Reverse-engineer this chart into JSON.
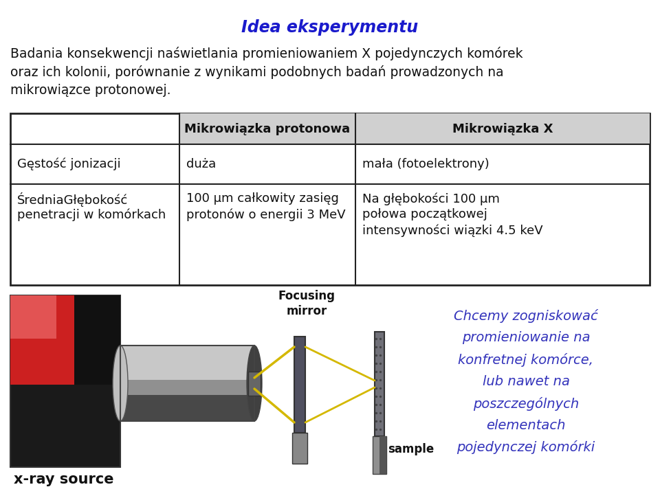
{
  "title": "Idea eksperymentu",
  "title_color": "#1a1acc",
  "body_line1": "Badania konsekwencji naświetlania promieniowaniem X pojedynczych komórek",
  "body_line2": "oraz ich kolonii, porównanie z wynikami podobnych badań prowadzonych na",
  "body_line3": "mikrowiązce protonowej.",
  "table_col0_header": "",
  "table_col1_header": "Mikrowiązka protonowa",
  "table_col2_header": "Mikrowiązka X",
  "row1_col0": "Gęstość jonizacji",
  "row1_col1": "duża",
  "row1_col2": "mała (fotoelektrony)",
  "row2_col0_line1": "ŚredniaGłębokość",
  "row2_col0_line2": "penetracji w komórkach",
  "row2_col1_line1": "100 µm całkowity zasięg",
  "row2_col1_line2": "protonów o energii 3 MeV",
  "row2_col2_line1": "Na głębokości 100 µm",
  "row2_col2_line2": "połowa początkowej",
  "row2_col2_line3": "intensywności wiązki 4.5 keV",
  "row2_col0_line1_fixed": "ŚredniaGłębokość",
  "caption": "Chcemy zogniskować\npromieniowanie na\nkonfretnej komórce,\nlub nawet na\nposzczególnych\nelementach\npojedynczej komórki",
  "caption_color": "#3333bb",
  "label_focusing": "Focusing\nmirror",
  "label_sample": "sample",
  "label_xray": "x-ray source",
  "bg": "#ffffff",
  "border_color": "#222222",
  "header_bg": "#d0d0d0",
  "beam_color": "#d4b800"
}
